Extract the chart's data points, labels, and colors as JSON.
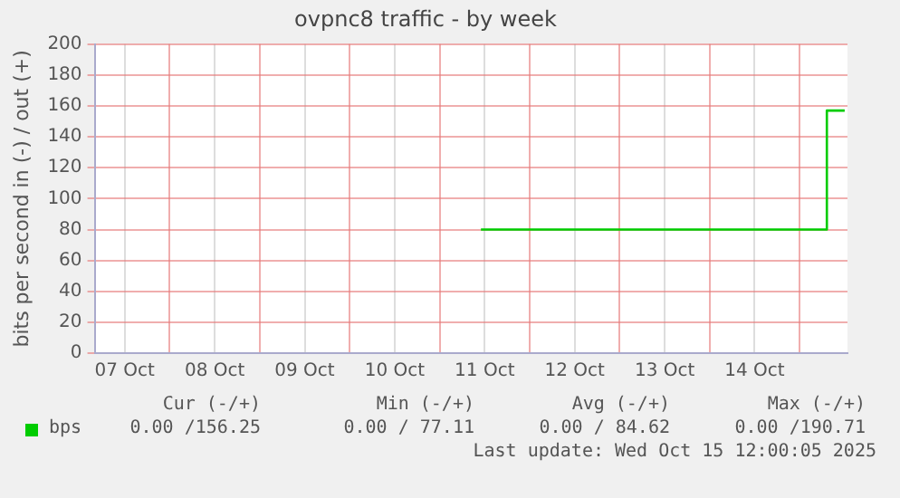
{
  "chart_data": {
    "type": "line",
    "title": "ovpnc8 traffic - by week",
    "ylabel": "bits per second in (-) / out (+)",
    "x": [
      "2025-10-11T11:00",
      "2025-10-12T12:00",
      "2025-10-15T07:00",
      "2025-10-15T07:15",
      "2025-10-15T12:00"
    ],
    "series": [
      {
        "name": "bps",
        "color": "#00cc00",
        "values": [
          80,
          80,
          80,
          157,
          157
        ]
      }
    ],
    "xlim": [
      "2025-10-07T04:00",
      "2025-10-15T12:45"
    ],
    "xticks": [
      {
        "value": "2025-10-07T12:00",
        "label": "07 Oct"
      },
      {
        "value": "2025-10-08T00:00",
        "label": null
      },
      {
        "value": "2025-10-08T12:00",
        "label": "08 Oct"
      },
      {
        "value": "2025-10-09T00:00",
        "label": null
      },
      {
        "value": "2025-10-09T12:00",
        "label": "09 Oct"
      },
      {
        "value": "2025-10-10T00:00",
        "label": null
      },
      {
        "value": "2025-10-10T12:00",
        "label": "10 Oct"
      },
      {
        "value": "2025-10-11T00:00",
        "label": null
      },
      {
        "value": "2025-10-11T12:00",
        "label": "11 Oct"
      },
      {
        "value": "2025-10-12T00:00",
        "label": null
      },
      {
        "value": "2025-10-12T12:00",
        "label": "12 Oct"
      },
      {
        "value": "2025-10-13T00:00",
        "label": null
      },
      {
        "value": "2025-10-13T12:00",
        "label": "13 Oct"
      },
      {
        "value": "2025-10-14T00:00",
        "label": null
      },
      {
        "value": "2025-10-14T12:00",
        "label": "14 Oct"
      },
      {
        "value": "2025-10-15T00:00",
        "label": null
      }
    ],
    "ylim": [
      0,
      200
    ],
    "yticks": [
      0,
      20,
      40,
      60,
      80,
      100,
      120,
      140,
      160,
      180,
      200
    ],
    "grid": true,
    "legend": "bottom left",
    "marker": "none",
    "line_style": "solid",
    "annotations": [
      "Cur (-/+)",
      "Min (-/+)",
      "Avg (-/+)",
      "Max (-/+)",
      "0.00 /156.25",
      "0.00 / 77.11",
      "0.00 / 84.62",
      "0.00 /190.71",
      "Last update: Wed Oct 15 12:00:05 2025"
    ]
  }
}
